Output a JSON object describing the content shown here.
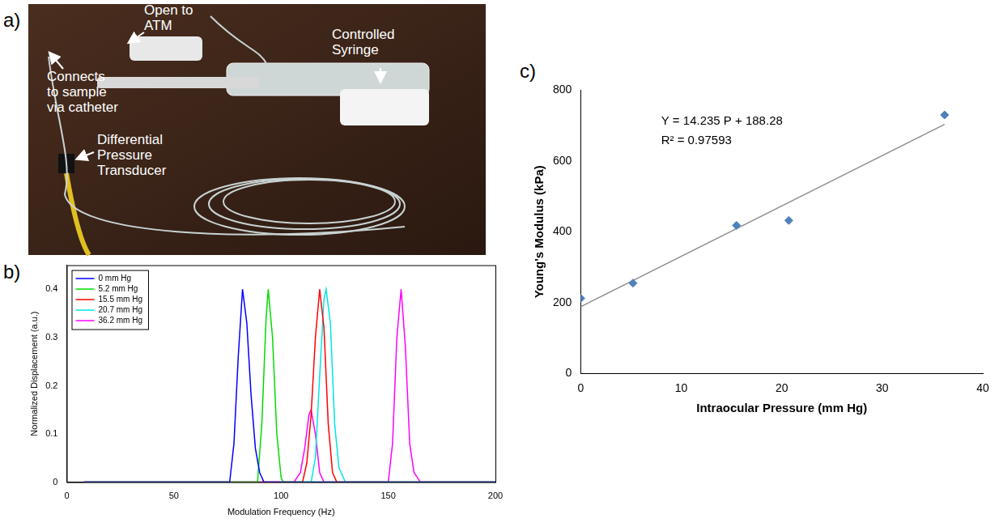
{
  "photo": {
    "panel_label": "a)",
    "labels": [
      [
        "Open to",
        "ATM"
      ],
      [
        "Controlled",
        "Syringe"
      ],
      [
        "Connects",
        "to sample",
        "via catheter"
      ],
      [
        "Differential",
        "Pressure",
        "Transducer"
      ]
    ]
  },
  "chart_data": [
    {
      "type": "line",
      "panel_label": "b)",
      "x_label": "Modulation Frequency (Hz)",
      "y_label": "Normalized Displacement (a.u.)",
      "xlim": [
        0,
        200
      ],
      "xticks": [
        0,
        50,
        100,
        150,
        200
      ],
      "ylim": [
        0,
        0.45
      ],
      "yticks": [
        0,
        0.1,
        0.2,
        0.3,
        0.4
      ],
      "grid": false,
      "legend": "upper left",
      "series": [
        {
          "name": "0 mm Hg",
          "color": "#0000ff",
          "line_style": "solid",
          "x": [
            8,
            76,
            78,
            80,
            82,
            84,
            86,
            88,
            90,
            92,
            200
          ],
          "values": [
            0,
            0,
            0.08,
            0.26,
            0.4,
            0.33,
            0.18,
            0.07,
            0.02,
            0,
            0
          ]
        },
        {
          "name": "5.2 mm Hg",
          "color": "#00dd00",
          "line_style": "solid",
          "x": [
            8,
            89,
            91,
            93,
            94,
            96,
            98,
            100,
            101,
            200
          ],
          "values": [
            0,
            0,
            0.12,
            0.34,
            0.4,
            0.3,
            0.1,
            0.01,
            0,
            0
          ]
        },
        {
          "name": "15.5 mm Hg",
          "color": "#ff0000",
          "line_style": "solid",
          "x": [
            8,
            110,
            112,
            114,
            116,
            118,
            120,
            122,
            124,
            126,
            200
          ],
          "values": [
            0,
            0,
            0.04,
            0.14,
            0.3,
            0.4,
            0.32,
            0.12,
            0.02,
            0,
            0
          ]
        },
        {
          "name": "20.7 mm Hg",
          "color": "#00e5e5",
          "line_style": "solid",
          "x": [
            8,
            114,
            116,
            118,
            120,
            121,
            123,
            125,
            127,
            130,
            200
          ],
          "values": [
            0,
            0,
            0.05,
            0.22,
            0.38,
            0.4,
            0.33,
            0.12,
            0.03,
            0,
            0
          ]
        },
        {
          "name": "36.2 mm Hg",
          "color": "#ff00ff",
          "line_style": "solid",
          "x": [
            8,
            106,
            109,
            111,
            113,
            114,
            116,
            118,
            120,
            150,
            152,
            154,
            156,
            158,
            160,
            162,
            165,
            200
          ],
          "values": [
            0,
            0,
            0.02,
            0.07,
            0.14,
            0.15,
            0.1,
            0.02,
            0,
            0,
            0.08,
            0.3,
            0.4,
            0.28,
            0.08,
            0.02,
            0,
            0
          ]
        }
      ]
    },
    {
      "type": "scatter",
      "panel_label": "c)",
      "x_label": "Intraocular Pressure (mm Hg)",
      "y_label": "Young's Modulus (kPa)",
      "xlim": [
        0,
        40
      ],
      "xticks": [
        0,
        10,
        20,
        30,
        40
      ],
      "ylim": [
        0,
        800
      ],
      "yticks": [
        0,
        200,
        400,
        600,
        800
      ],
      "grid": false,
      "annotations": [
        "Y = 14.235 P + 188.28",
        "R² = 0.97593"
      ],
      "series": [
        {
          "type": "scatter",
          "color": "#4f81bd",
          "marker": "diamond",
          "x": [
            0,
            5.2,
            15.5,
            20.7,
            36.2
          ],
          "values": [
            212,
            255,
            418,
            432,
            730
          ]
        },
        {
          "type": "line",
          "color": "#8c8c8c",
          "line_style": "solid",
          "x": [
            0,
            36.2
          ],
          "values": [
            188.28,
            703.59
          ]
        }
      ]
    }
  ]
}
